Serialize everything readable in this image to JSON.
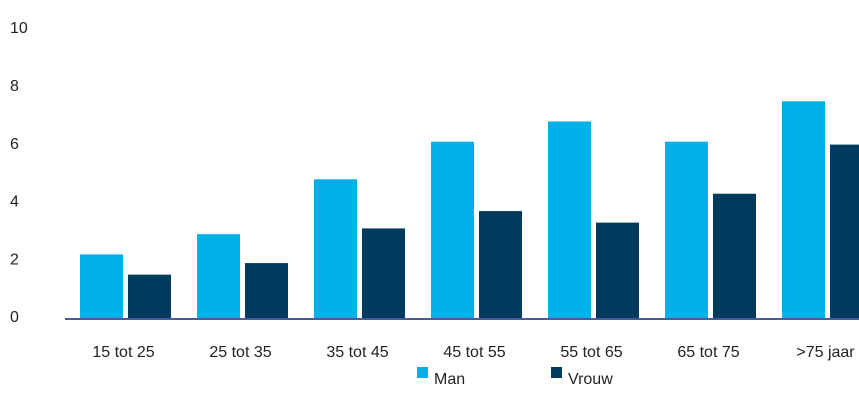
{
  "chart_data": {
    "type": "bar",
    "categories": [
      "15 tot 25",
      "25 tot 35",
      "35 tot 45",
      "45 tot 55",
      "55 tot 65",
      "65 tot 75",
      ">75 jaar"
    ],
    "series": [
      {
        "name": "Man",
        "color": "#00b0e8",
        "values": [
          2.2,
          2.9,
          4.8,
          6.1,
          6.8,
          6.1,
          7.5
        ]
      },
      {
        "name": "Vrouw",
        "color": "#003a5c",
        "values": [
          1.5,
          1.9,
          3.1,
          3.7,
          3.3,
          4.3,
          6.0
        ]
      }
    ],
    "ylim": [
      0,
      10
    ],
    "yticks": [
      0,
      2,
      4,
      6,
      8,
      10
    ],
    "grid": false,
    "legend": "bottom"
  }
}
